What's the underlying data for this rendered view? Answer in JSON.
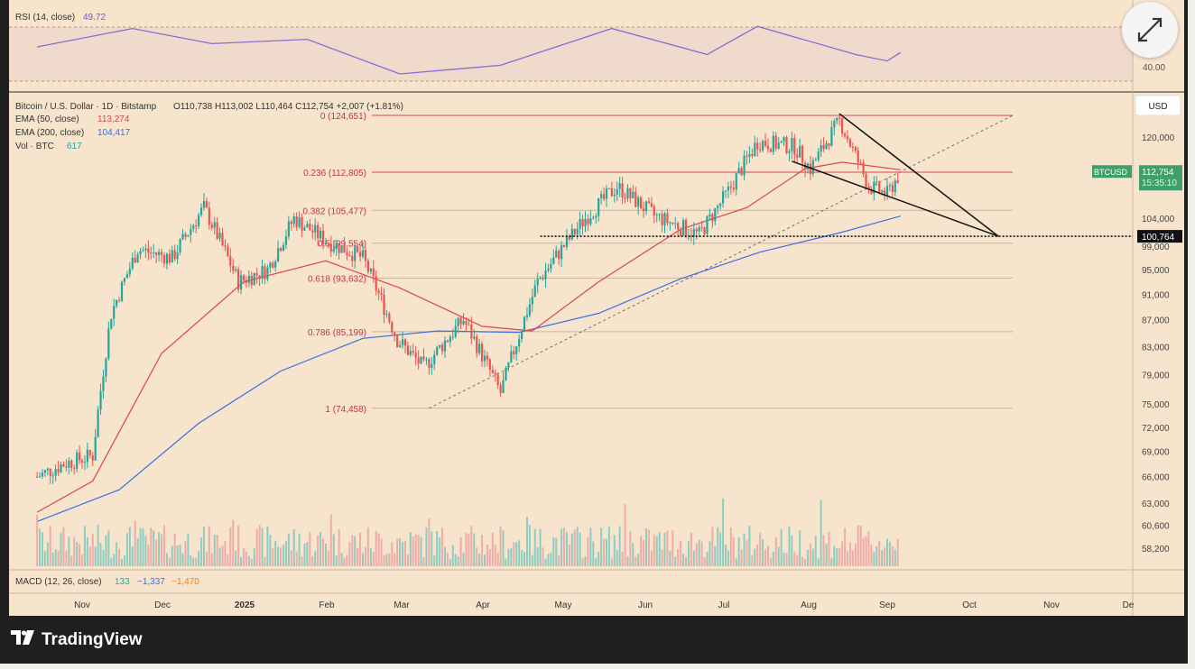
{
  "chart_data": {
    "type": "candlestick",
    "instrument": "Bitcoin / U.S. Dollar",
    "timeframe": "1D",
    "exchange": "Bitstamp",
    "ohlc": {
      "open": "O110,738",
      "high": "H113,002",
      "low": "L110,464",
      "close": "C112,754",
      "change": "+2,007 (+1.81%)"
    },
    "indicators": [
      {
        "name": "EMA (50, close)",
        "value": "113,274",
        "color": "#e0424b"
      },
      {
        "name": "EMA (200, close)",
        "value": "104,417",
        "color": "#3b6fe0"
      },
      {
        "name": "Vol · BTC",
        "value": "617",
        "color": "#26a69a"
      }
    ],
    "rsi": {
      "label": "RSI (14, close)",
      "value": "49.72",
      "level": "40.00"
    },
    "macd": {
      "label": "MACD (12, 26, close)",
      "v1": "133",
      "v2": "−1,337",
      "v3": "−1,470"
    },
    "currency": "USD",
    "y_ticks": [
      120000,
      104000,
      99000,
      95000,
      91000,
      87000,
      83000,
      79000,
      75000,
      72000,
      69000,
      66000,
      63000,
      60600,
      58200
    ],
    "y_tick_labels": [
      "120,000",
      "104,000",
      "99,000",
      "95,000",
      "91,000",
      "87,000",
      "83,000",
      "79,000",
      "75,000",
      "72,000",
      "69,000",
      "66,000",
      "63,000",
      "60,600",
      "58,200"
    ],
    "x_ticks": [
      "Nov",
      "Dec",
      "2025",
      "Feb",
      "Mar",
      "Apr",
      "May",
      "Jun",
      "Jul",
      "Aug",
      "Sep",
      "Oct",
      "Nov",
      "De"
    ],
    "fib_levels": [
      {
        "label": "0 (124,651)",
        "price": 124651
      },
      {
        "label": "0.236 (112,805)",
        "price": 112805
      },
      {
        "label": "0.382 (105,477)",
        "price": 105477
      },
      {
        "label": "0.5 (99,554)",
        "price": 99554
      },
      {
        "label": "0.618 (93,632)",
        "price": 93632
      },
      {
        "label": "0.786 (85,199)",
        "price": 85199
      },
      {
        "label": "1 (74,458)",
        "price": 74458
      }
    ],
    "price_tag": {
      "symbol": "BTCUSD",
      "price": "112,754",
      "countdown": "15:35:10"
    },
    "support_label": "100,764",
    "close_path": [
      [
        "2024-10-15",
        66000
      ],
      [
        "2024-10-25",
        67500
      ],
      [
        "2024-11-05",
        68500
      ],
      [
        "2024-11-12",
        88000
      ],
      [
        "2024-11-22",
        98500
      ],
      [
        "2024-12-05",
        97000
      ],
      [
        "2024-12-17",
        106000
      ],
      [
        "2024-12-30",
        93000
      ],
      [
        "2025-01-10",
        95000
      ],
      [
        "2025-01-20",
        104000
      ],
      [
        "2025-02-01",
        100000
      ],
      [
        "2025-02-15",
        97000
      ],
      [
        "2025-02-28",
        84000
      ],
      [
        "2025-03-10",
        80000
      ],
      [
        "2025-03-25",
        87000
      ],
      [
        "2025-04-08",
        76500
      ],
      [
        "2025-04-22",
        93000
      ],
      [
        "2025-05-10",
        104000
      ],
      [
        "2025-05-22",
        110000
      ],
      [
        "2025-06-05",
        104500
      ],
      [
        "2025-06-22",
        101000
      ],
      [
        "2025-07-03",
        109000
      ],
      [
        "2025-07-14",
        119000
      ],
      [
        "2025-07-28",
        118000
      ],
      [
        "2025-08-03",
        113500
      ],
      [
        "2025-08-14",
        123500
      ],
      [
        "2025-08-25",
        110000
      ],
      [
        "2025-09-01",
        108500
      ],
      [
        "2025-09-06",
        112754
      ]
    ],
    "ema50": [
      [
        "2024-10-15",
        62000
      ],
      [
        "2024-11-05",
        65500
      ],
      [
        "2024-12-01",
        82000
      ],
      [
        "2025-01-01",
        93000
      ],
      [
        "2025-02-01",
        96500
      ],
      [
        "2025-03-01",
        92000
      ],
      [
        "2025-04-01",
        86000
      ],
      [
        "2025-04-20",
        85300
      ],
      [
        "2025-05-15",
        93000
      ],
      [
        "2025-06-15",
        102000
      ],
      [
        "2025-07-10",
        106000
      ],
      [
        "2025-08-01",
        113500
      ],
      [
        "2025-08-15",
        114800
      ],
      [
        "2025-09-06",
        113274
      ]
    ],
    "ema200": [
      [
        "2024-10-15",
        61000
      ],
      [
        "2024-11-15",
        64500
      ],
      [
        "2024-12-15",
        72500
      ],
      [
        "2025-01-15",
        79500
      ],
      [
        "2025-02-15",
        84200
      ],
      [
        "2025-03-15",
        85300
      ],
      [
        "2025-04-15",
        85100
      ],
      [
        "2025-05-15",
        88000
      ],
      [
        "2025-06-15",
        93500
      ],
      [
        "2025-07-15",
        98000
      ],
      [
        "2025-08-15",
        101500
      ],
      [
        "2025-09-06",
        104417
      ]
    ],
    "rsi_path": [
      [
        "2024-10-15",
        55
      ],
      [
        "2024-11-20",
        72
      ],
      [
        "2024-12-20",
        58
      ],
      [
        "2025-01-25",
        62
      ],
      [
        "2025-03-01",
        30
      ],
      [
        "2025-04-08",
        38
      ],
      [
        "2025-05-20",
        72
      ],
      [
        "2025-06-25",
        48
      ],
      [
        "2025-07-14",
        74
      ],
      [
        "2025-08-20",
        48
      ],
      [
        "2025-09-01",
        42
      ],
      [
        "2025-09-06",
        49.72
      ]
    ],
    "trendlines": [
      {
        "name": "falling-wedge-upper",
        "from": [
          "2025-08-14",
          125000
        ],
        "to": [
          "2025-10-13",
          100764
        ]
      },
      {
        "name": "falling-wedge-lower",
        "from": [
          "2025-07-27",
          115000
        ],
        "to": [
          "2025-10-13",
          100764
        ]
      },
      {
        "name": "support-line",
        "from": [
          "2025-04-23",
          100764
        ],
        "to": [
          "2025-10-13",
          100764
        ]
      }
    ]
  },
  "branding": {
    "name": "TradingView",
    "logo": "tradingview-logo",
    "expand_icon": "expand-icon"
  }
}
